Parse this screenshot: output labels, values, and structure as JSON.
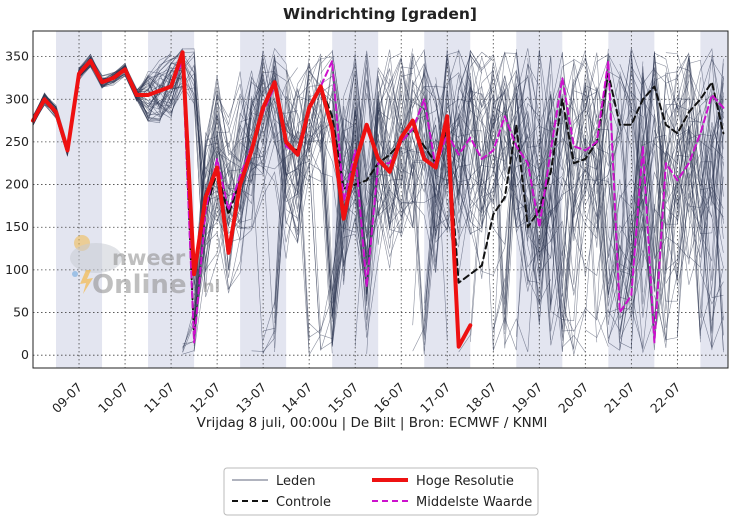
{
  "chart_data": {
    "type": "line",
    "title": "Windrichting [graden]",
    "subtitle": "Vrijdag 8 juli, 00:00u  | De Bilt | Bron: ECMWF / KNMI",
    "x_unit": "days since Vrijdag 8 juli 00:00u",
    "x_range": [
      0,
      15.1
    ],
    "ylim": [
      -15,
      380
    ],
    "yticks": [
      0,
      50,
      100,
      150,
      200,
      250,
      300,
      350
    ],
    "xtick_labels": [
      "09-07",
      "10-07",
      "11-07",
      "12-07",
      "13-07",
      "14-07",
      "15-07",
      "16-07",
      "17-07",
      "18-07",
      "19-07",
      "20-07",
      "21-07",
      "22-07"
    ],
    "xtick_positions": [
      1,
      2,
      3,
      4,
      5,
      6,
      7,
      8,
      9,
      10,
      11,
      12,
      13,
      14
    ],
    "shaded_days": [
      [
        0.5,
        1.5
      ],
      [
        2.5,
        3.5
      ],
      [
        4.5,
        5.5
      ],
      [
        6.5,
        7.5
      ],
      [
        8.5,
        9.5
      ],
      [
        10.5,
        11.5
      ],
      [
        12.5,
        13.5
      ],
      [
        14.5,
        15.1
      ]
    ],
    "grid": true,
    "legend_position": "bottom-center",
    "series": [
      {
        "name": "Hoge Resolutie",
        "color": "#ee1111",
        "style": "solid-thick",
        "x": [
          0,
          0.25,
          0.5,
          0.75,
          1,
          1.25,
          1.5,
          1.75,
          2,
          2.25,
          2.5,
          2.75,
          3,
          3.25,
          3.5,
          3.75,
          4,
          4.25,
          4.5,
          4.75,
          5,
          5.25,
          5.5,
          5.75,
          6,
          6.25,
          6.5,
          6.75,
          7,
          7.25,
          7.5,
          7.75,
          8,
          8.25,
          8.5,
          8.75,
          9,
          9.25,
          9.5,
          9.75,
          10
        ],
        "values": [
          275,
          300,
          285,
          240,
          330,
          345,
          320,
          325,
          335,
          305,
          305,
          310,
          315,
          355,
          95,
          185,
          220,
          120,
          200,
          240,
          290,
          320,
          250,
          235,
          290,
          315,
          265,
          160,
          225,
          270,
          230,
          215,
          255,
          275,
          230,
          220,
          280,
          10,
          35,
          null,
          null
        ]
      },
      {
        "name": "Controle",
        "color": "#111111",
        "style": "dashed",
        "x": [
          0,
          0.25,
          0.5,
          0.75,
          1,
          1.25,
          1.5,
          1.75,
          2,
          2.25,
          2.5,
          2.75,
          3,
          3.25,
          3.5,
          3.75,
          4,
          4.25,
          4.5,
          4.75,
          5,
          5.25,
          5.5,
          5.75,
          6,
          6.25,
          6.5,
          6.75,
          7,
          7.25,
          7.5,
          7.75,
          8,
          8.25,
          8.5,
          8.75,
          9,
          9.25,
          9.5,
          9.75,
          10,
          10.25,
          10.5,
          10.75,
          11,
          11.25,
          11.5,
          11.75,
          12,
          12.25,
          12.5,
          12.75,
          13,
          13.25,
          13.5,
          13.75,
          14,
          14.25,
          14.5,
          14.75,
          15
        ],
        "values": [
          275,
          300,
          285,
          240,
          330,
          345,
          320,
          325,
          335,
          305,
          305,
          310,
          315,
          350,
          20,
          170,
          215,
          165,
          205,
          240,
          290,
          320,
          245,
          240,
          290,
          315,
          280,
          195,
          200,
          205,
          225,
          235,
          250,
          265,
          245,
          225,
          265,
          85,
          95,
          105,
          165,
          185,
          270,
          150,
          170,
          215,
          300,
          225,
          230,
          250,
          330,
          270,
          270,
          300,
          315,
          270,
          260,
          285,
          300,
          320,
          260
        ]
      },
      {
        "name": "Middelste Waarde",
        "color": "#cc11cc",
        "style": "dashed",
        "x": [
          0,
          0.25,
          0.5,
          0.75,
          1,
          1.25,
          1.5,
          1.75,
          2,
          2.25,
          2.5,
          2.75,
          3,
          3.25,
          3.5,
          3.75,
          4,
          4.25,
          4.5,
          4.75,
          5,
          5.25,
          5.5,
          5.75,
          6,
          6.25,
          6.5,
          6.75,
          7,
          7.25,
          7.5,
          7.75,
          8,
          8.25,
          8.5,
          8.75,
          9,
          9.25,
          9.5,
          9.75,
          10,
          10.25,
          10.5,
          10.75,
          11,
          11.25,
          11.5,
          11.75,
          12,
          12.25,
          12.5,
          12.75,
          13,
          13.25,
          13.5,
          13.75,
          14,
          14.25,
          14.5,
          14.75,
          15
        ],
        "values": [
          275,
          300,
          285,
          240,
          330,
          345,
          320,
          325,
          335,
          305,
          305,
          310,
          315,
          345,
          15,
          170,
          230,
          170,
          210,
          245,
          285,
          315,
          245,
          235,
          290,
          315,
          345,
          180,
          240,
          80,
          225,
          225,
          250,
          265,
          300,
          220,
          260,
          235,
          255,
          230,
          240,
          280,
          245,
          225,
          150,
          240,
          325,
          245,
          240,
          250,
          345,
          50,
          70,
          245,
          15,
          225,
          205,
          225,
          260,
          305,
          290
        ]
      }
    ],
    "ensemble": {
      "name": "Leden",
      "color": "#2b3550",
      "member_count": 50
    }
  },
  "legend": {
    "items": [
      {
        "name": "Leden",
        "color": "#2b3550",
        "style": "thin"
      },
      {
        "name": "Hoge Resolutie",
        "color": "#ee1111",
        "style": "thick"
      },
      {
        "name": "Controle",
        "color": "#111111",
        "style": "dashed"
      },
      {
        "name": "Middelste Waarde",
        "color": "#cc11cc",
        "style": "dashed"
      }
    ]
  },
  "watermark": {
    "word1": "nweer",
    "word2": "Online",
    "suffix": ".nl"
  }
}
